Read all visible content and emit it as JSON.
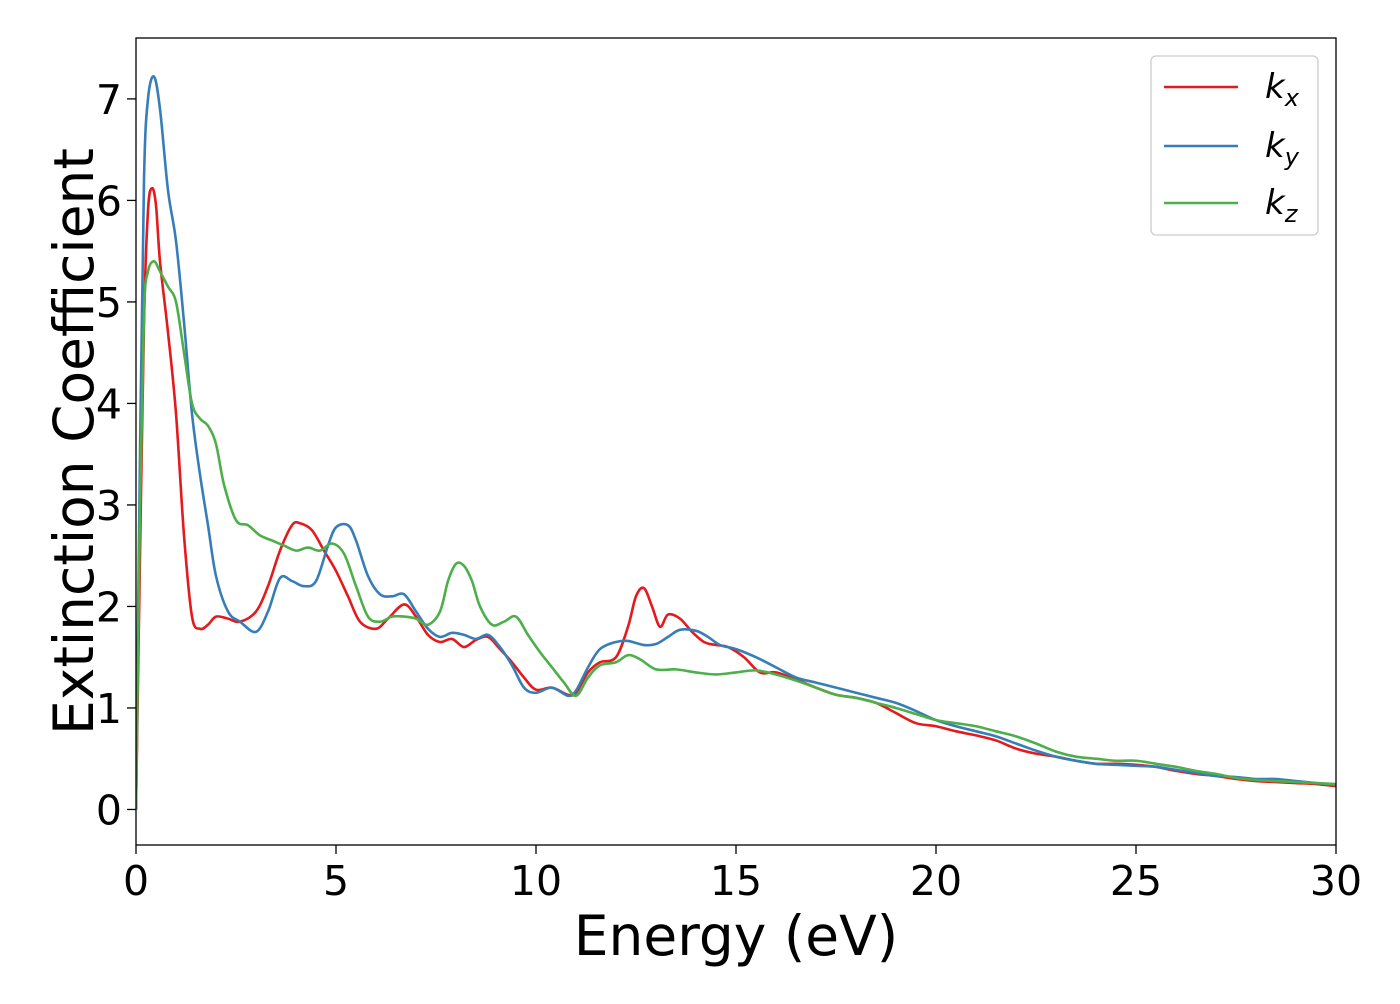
{
  "chart_data": {
    "type": "line",
    "title": "",
    "xlabel": "Energy (eV)",
    "ylabel": "Extinction Coefficient",
    "xlim": [
      0,
      30
    ],
    "ylim": [
      -0.35,
      7.6
    ],
    "xticks": [
      0,
      5,
      10,
      15,
      20,
      25,
      30
    ],
    "yticks": [
      0,
      1,
      2,
      3,
      4,
      5,
      6,
      7
    ],
    "grid": false,
    "legend_position": "top-right",
    "series": [
      {
        "name": "k_x",
        "legend_main": "k",
        "legend_sub": "x",
        "color": "#e41a1c",
        "x": [
          0,
          0.1,
          0.2,
          0.3,
          0.4,
          0.5,
          0.6,
          0.8,
          1.0,
          1.2,
          1.4,
          1.6,
          1.8,
          2.0,
          2.3,
          2.6,
          3.0,
          3.3,
          3.6,
          3.9,
          4.1,
          4.4,
          4.7,
          5.0,
          5.3,
          5.6,
          6.0,
          6.3,
          6.7,
          7.0,
          7.3,
          7.6,
          7.9,
          8.2,
          8.5,
          8.8,
          9.1,
          9.4,
          9.7,
          10.0,
          10.4,
          10.8,
          11.0,
          11.3,
          11.6,
          12.0,
          12.3,
          12.5,
          12.7,
          12.9,
          13.1,
          13.3,
          13.6,
          13.9,
          14.2,
          14.5,
          14.8,
          15.2,
          15.6,
          16.0,
          16.5,
          17.0,
          17.5,
          18.0,
          18.5,
          19.0,
          19.5,
          20.0,
          20.5,
          21.0,
          21.5,
          22.0,
          22.5,
          23.0,
          23.5,
          24.0,
          24.5,
          25.0,
          25.5,
          26.0,
          26.5,
          27.0,
          27.5,
          28.0,
          28.5,
          29.0,
          29.5,
          30.0
        ],
        "values": [
          0.0,
          2.5,
          4.8,
          5.9,
          6.12,
          5.95,
          5.4,
          4.7,
          3.9,
          2.7,
          1.9,
          1.78,
          1.82,
          1.9,
          1.88,
          1.85,
          1.95,
          2.2,
          2.55,
          2.8,
          2.82,
          2.75,
          2.55,
          2.35,
          2.1,
          1.85,
          1.78,
          1.88,
          2.02,
          1.9,
          1.72,
          1.65,
          1.68,
          1.6,
          1.67,
          1.7,
          1.58,
          1.45,
          1.3,
          1.18,
          1.2,
          1.13,
          1.15,
          1.35,
          1.45,
          1.5,
          1.8,
          2.1,
          2.18,
          2.0,
          1.8,
          1.92,
          1.88,
          1.75,
          1.65,
          1.62,
          1.6,
          1.5,
          1.35,
          1.35,
          1.28,
          1.2,
          1.13,
          1.1,
          1.05,
          0.95,
          0.85,
          0.82,
          0.77,
          0.73,
          0.68,
          0.6,
          0.55,
          0.52,
          0.48,
          0.45,
          0.45,
          0.44,
          0.42,
          0.38,
          0.35,
          0.33,
          0.3,
          0.28,
          0.27,
          0.26,
          0.25,
          0.23
        ]
      },
      {
        "name": "k_y",
        "legend_main": "k",
        "legend_sub": "y",
        "color": "#377eb8",
        "x": [
          0,
          0.1,
          0.2,
          0.3,
          0.45,
          0.6,
          0.8,
          1.0,
          1.2,
          1.4,
          1.6,
          1.8,
          2.0,
          2.3,
          2.6,
          3.0,
          3.3,
          3.6,
          3.9,
          4.2,
          4.5,
          4.8,
          5.0,
          5.3,
          5.5,
          5.8,
          6.1,
          6.4,
          6.7,
          7.0,
          7.3,
          7.6,
          7.9,
          8.2,
          8.5,
          8.8,
          9.1,
          9.4,
          9.7,
          10.0,
          10.4,
          10.8,
          11.0,
          11.3,
          11.6,
          12.0,
          12.3,
          12.7,
          13.0,
          13.3,
          13.6,
          14.0,
          14.3,
          14.6,
          15.0,
          15.5,
          16.0,
          16.5,
          17.0,
          17.5,
          18.0,
          18.5,
          19.0,
          19.5,
          20.0,
          20.5,
          21.0,
          21.5,
          22.0,
          22.5,
          23.0,
          23.5,
          24.0,
          24.5,
          25.0,
          25.5,
          26.0,
          26.5,
          27.0,
          27.5,
          28.0,
          28.5,
          29.0,
          29.5,
          30.0
        ],
        "values": [
          0.0,
          3.5,
          6.2,
          7.0,
          7.22,
          6.9,
          6.1,
          5.6,
          4.8,
          3.9,
          3.3,
          2.8,
          2.3,
          1.95,
          1.85,
          1.75,
          1.95,
          2.28,
          2.25,
          2.2,
          2.25,
          2.6,
          2.78,
          2.8,
          2.65,
          2.3,
          2.12,
          2.1,
          2.12,
          1.95,
          1.78,
          1.7,
          1.74,
          1.72,
          1.68,
          1.72,
          1.6,
          1.42,
          1.2,
          1.15,
          1.2,
          1.12,
          1.17,
          1.4,
          1.58,
          1.65,
          1.66,
          1.62,
          1.63,
          1.7,
          1.77,
          1.76,
          1.7,
          1.62,
          1.58,
          1.5,
          1.4,
          1.3,
          1.25,
          1.2,
          1.15,
          1.1,
          1.05,
          0.97,
          0.88,
          0.82,
          0.77,
          0.72,
          0.65,
          0.58,
          0.52,
          0.48,
          0.45,
          0.44,
          0.43,
          0.42,
          0.39,
          0.36,
          0.33,
          0.32,
          0.3,
          0.3,
          0.28,
          0.26,
          0.24
        ]
      },
      {
        "name": "k_z",
        "legend_main": "k",
        "legend_sub": "z",
        "color": "#4daf4a",
        "x": [
          0,
          0.1,
          0.2,
          0.3,
          0.45,
          0.6,
          0.8,
          1.0,
          1.2,
          1.4,
          1.6,
          1.8,
          2.0,
          2.2,
          2.5,
          2.8,
          3.1,
          3.4,
          3.7,
          4.0,
          4.3,
          4.6,
          4.9,
          5.2,
          5.5,
          5.8,
          6.1,
          6.4,
          6.7,
          7.0,
          7.3,
          7.6,
          7.8,
          8.0,
          8.2,
          8.4,
          8.6,
          8.9,
          9.2,
          9.5,
          9.8,
          10.1,
          10.4,
          10.7,
          11.0,
          11.3,
          11.6,
          12.0,
          12.3,
          12.6,
          13.0,
          13.5,
          14.0,
          14.5,
          15.0,
          15.5,
          16.0,
          16.5,
          17.0,
          17.5,
          18.0,
          18.5,
          19.0,
          19.5,
          20.0,
          20.5,
          21.0,
          21.5,
          22.0,
          22.5,
          23.0,
          23.5,
          24.0,
          24.5,
          25.0,
          25.5,
          26.0,
          26.5,
          27.0,
          27.5,
          28.0,
          28.5,
          29.0,
          29.5,
          30.0
        ],
        "values": [
          0.0,
          3.0,
          4.9,
          5.3,
          5.4,
          5.3,
          5.15,
          5.0,
          4.5,
          4.0,
          3.85,
          3.78,
          3.6,
          3.2,
          2.85,
          2.8,
          2.7,
          2.65,
          2.6,
          2.55,
          2.58,
          2.55,
          2.62,
          2.52,
          2.2,
          1.9,
          1.85,
          1.9,
          1.9,
          1.88,
          1.82,
          1.95,
          2.25,
          2.42,
          2.4,
          2.25,
          2.0,
          1.82,
          1.85,
          1.9,
          1.72,
          1.55,
          1.4,
          1.25,
          1.12,
          1.3,
          1.42,
          1.45,
          1.52,
          1.48,
          1.38,
          1.38,
          1.35,
          1.33,
          1.35,
          1.37,
          1.33,
          1.27,
          1.2,
          1.13,
          1.1,
          1.05,
          1.0,
          0.94,
          0.88,
          0.85,
          0.82,
          0.77,
          0.72,
          0.65,
          0.57,
          0.52,
          0.5,
          0.48,
          0.48,
          0.45,
          0.42,
          0.38,
          0.35,
          0.31,
          0.29,
          0.28,
          0.27,
          0.26,
          0.25
        ]
      }
    ]
  }
}
